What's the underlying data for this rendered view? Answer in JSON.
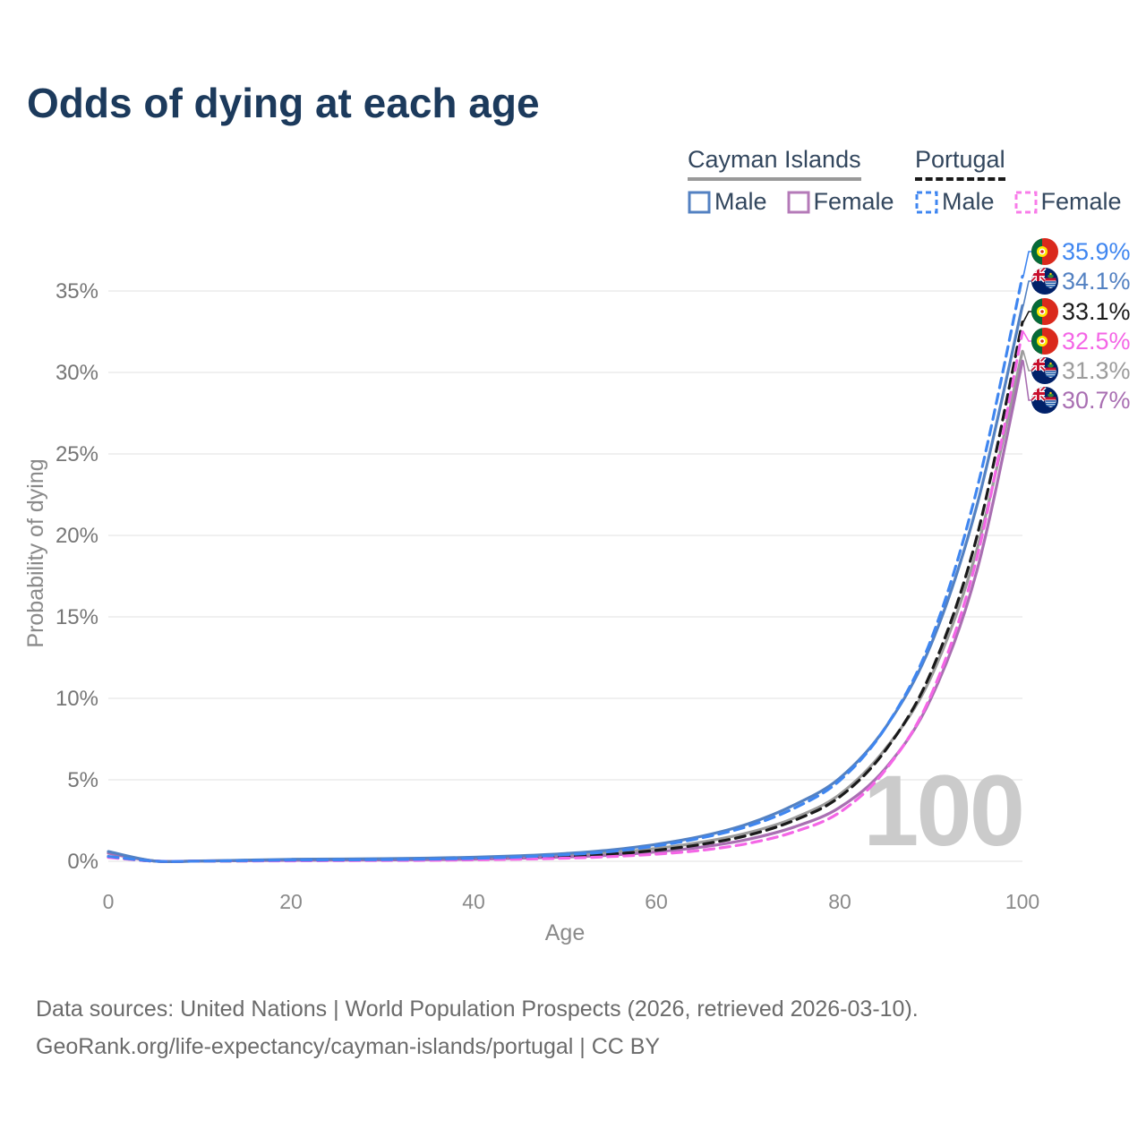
{
  "title": "Odds of dying at each age",
  "legend": {
    "groups": [
      {
        "country": "Cayman Islands",
        "line_style": "solid",
        "underline_color": "#999999",
        "items": [
          {
            "label": "Male",
            "color": "#5381c2",
            "style": "solid"
          },
          {
            "label": "Female",
            "color": "#b47ab8",
            "style": "solid"
          }
        ]
      },
      {
        "country": "Portugal",
        "line_style": "dashed",
        "underline_color": "#1a1a1a",
        "items": [
          {
            "label": "Male",
            "color": "#3f86f0",
            "style": "dashed"
          },
          {
            "label": "Female",
            "color": "#f87ce9",
            "style": "dashed"
          }
        ]
      }
    ]
  },
  "axes": {
    "y": {
      "label": "Probability of dying",
      "ticks": [
        "35%",
        "30%",
        "25%",
        "20%",
        "15%",
        "10%",
        "5%",
        "0%"
      ]
    },
    "x": {
      "label": "Age",
      "ticks": [
        "0",
        "20",
        "40",
        "60",
        "80",
        "100"
      ]
    }
  },
  "watermark": "100",
  "end_labels": [
    {
      "text": "35.9%",
      "color": "#3f86f0",
      "flag": "Portugal"
    },
    {
      "text": "34.1%",
      "color": "#5381c2",
      "flag": "Cayman Islands"
    },
    {
      "text": "33.1%",
      "color": "#1a1a1a",
      "flag": "Portugal"
    },
    {
      "text": "32.5%",
      "color": "#f466e6",
      "flag": "Portugal"
    },
    {
      "text": "31.3%",
      "color": "#9c9c9c",
      "flag": "Cayman Islands"
    },
    {
      "text": "30.7%",
      "color": "#a96fb2",
      "flag": "Cayman Islands"
    }
  ],
  "footer": {
    "line1": "Data sources: United Nations | World Population Prospects (2026, retrieved 2026-03-10).",
    "line2": "GeoRank.org/life-expectancy/cayman-islands/portugal | CC BY"
  },
  "chart_data": {
    "type": "line",
    "title": "Odds of dying at each age",
    "xlabel": "Age",
    "ylabel": "Probability of dying",
    "x_range": [
      0,
      100
    ],
    "y_range_pct": [
      0,
      37
    ],
    "grid": "horizontal",
    "legend_position": "top-right",
    "ages": [
      0,
      5,
      10,
      15,
      20,
      25,
      30,
      35,
      40,
      45,
      50,
      55,
      60,
      65,
      70,
      75,
      80,
      85,
      90,
      95,
      100
    ],
    "series": [
      {
        "name": "Portugal Male",
        "country": "Portugal",
        "sex": "Male",
        "style": "dashed",
        "color": "#3f86f0",
        "end_label": "35.9%",
        "values_pct": [
          0.3,
          0.01,
          0.01,
          0.04,
          0.07,
          0.08,
          0.1,
          0.13,
          0.18,
          0.27,
          0.4,
          0.6,
          0.95,
          1.45,
          2.15,
          3.25,
          4.95,
          8.2,
          13.6,
          22.8,
          35.9
        ]
      },
      {
        "name": "Cayman Islands Male",
        "country": "Cayman Islands",
        "sex": "Male",
        "style": "solid",
        "color": "#5381c2",
        "end_label": "34.1%",
        "values_pct": [
          0.6,
          0.02,
          0.02,
          0.07,
          0.12,
          0.14,
          0.16,
          0.19,
          0.25,
          0.34,
          0.48,
          0.7,
          1.05,
          1.55,
          2.3,
          3.45,
          5.1,
          8.2,
          13.3,
          21.8,
          34.1
        ]
      },
      {
        "name": "Portugal (both sexes)",
        "country": "Portugal",
        "sex": "Both",
        "style": "dashed",
        "color": "#1a1a1a",
        "end_label": "33.1%",
        "values_pct": [
          0.27,
          0.01,
          0.01,
          0.03,
          0.05,
          0.06,
          0.07,
          0.09,
          0.13,
          0.19,
          0.29,
          0.44,
          0.68,
          1.05,
          1.6,
          2.5,
          3.95,
          6.8,
          11.6,
          19.9,
          33.1
        ]
      },
      {
        "name": "Portugal Female",
        "country": "Portugal",
        "sex": "Female",
        "style": "dashed",
        "color": "#f466e6",
        "end_label": "32.5%",
        "values_pct": [
          0.24,
          0.01,
          0.01,
          0.02,
          0.03,
          0.04,
          0.05,
          0.06,
          0.09,
          0.13,
          0.19,
          0.29,
          0.44,
          0.68,
          1.1,
          1.8,
          3.0,
          5.6,
          10.2,
          18.6,
          32.5
        ]
      },
      {
        "name": "Cayman Islands (both sexes)",
        "country": "Cayman Islands",
        "sex": "Both",
        "style": "solid",
        "color": "#9c9c9c",
        "end_label": "31.3%",
        "values_pct": [
          0.55,
          0.02,
          0.02,
          0.05,
          0.08,
          0.1,
          0.12,
          0.14,
          0.18,
          0.25,
          0.36,
          0.53,
          0.79,
          1.18,
          1.75,
          2.65,
          4.1,
          6.9,
          11.3,
          19.1,
          31.3
        ]
      },
      {
        "name": "Cayman Islands Female",
        "country": "Cayman Islands",
        "sex": "Female",
        "style": "solid",
        "color": "#a96fb2",
        "end_label": "30.7%",
        "values_pct": [
          0.5,
          0.02,
          0.02,
          0.04,
          0.06,
          0.07,
          0.08,
          0.1,
          0.13,
          0.18,
          0.26,
          0.38,
          0.58,
          0.88,
          1.35,
          2.1,
          3.3,
          5.7,
          10.0,
          17.8,
          30.7
        ]
      }
    ]
  }
}
